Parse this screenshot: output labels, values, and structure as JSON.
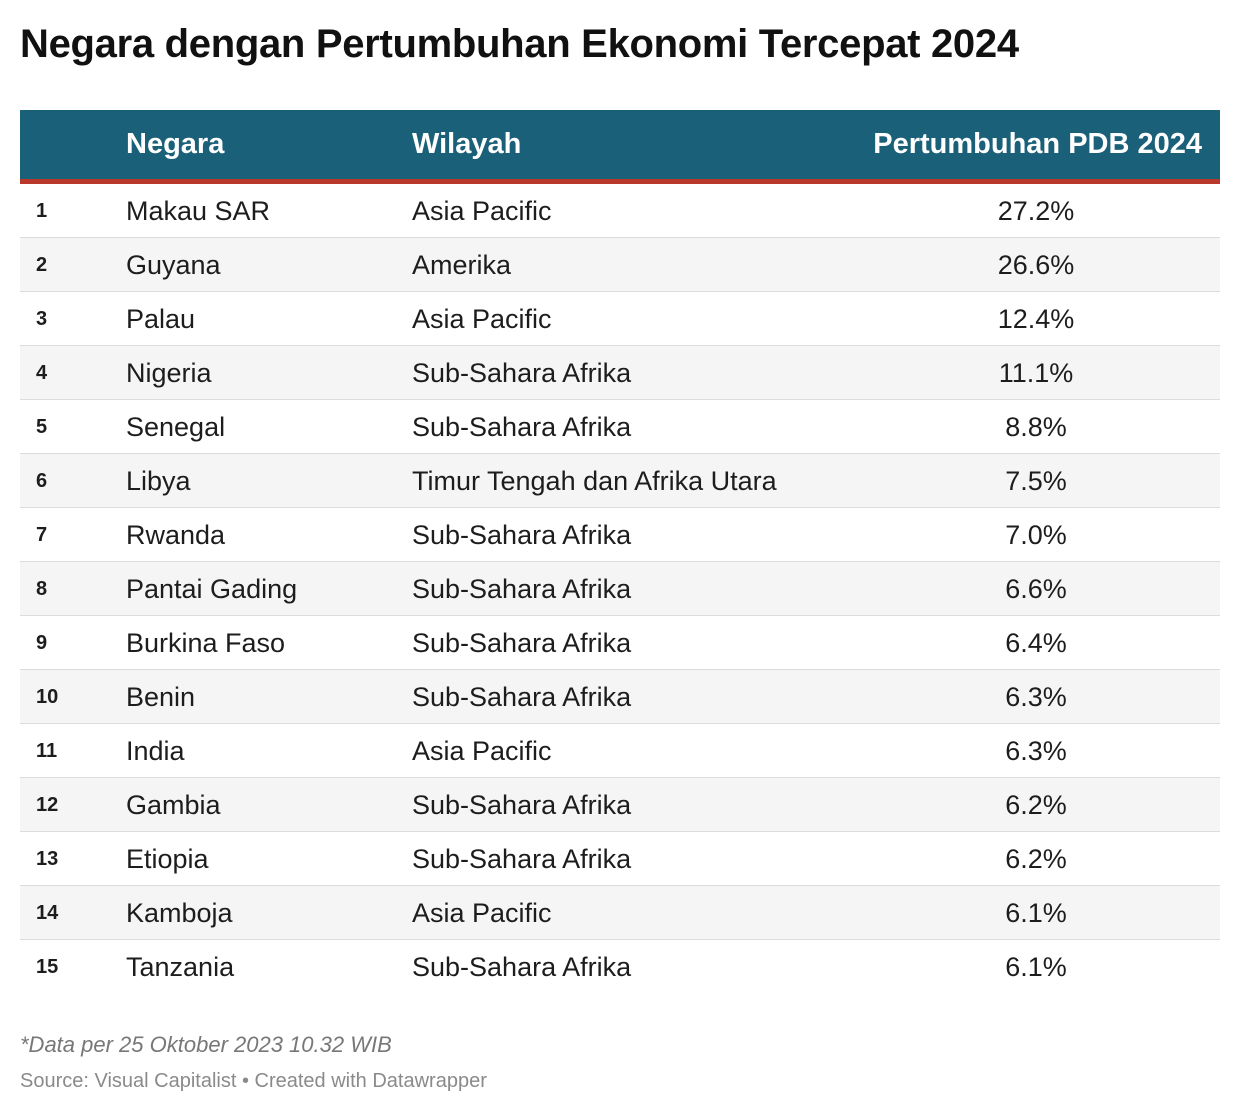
{
  "title": "Negara dengan Pertumbuhan Ekonomi Tercepat 2024",
  "colors": {
    "header_bg": "#1a6079",
    "header_accent": "#b8392c",
    "header_text": "#ffffff",
    "row_alt_bg": "#f5f5f5"
  },
  "chart_data": {
    "type": "table",
    "title": "Negara dengan Pertumbuhan Ekonomi Tercepat 2024",
    "columns": [
      "",
      "Negara",
      "Wilayah",
      "Pertumbuhan PDB 2024"
    ],
    "rows": [
      {
        "rank": "1",
        "negara": "Makau SAR",
        "wilayah": "Asia Pacific",
        "pdb": "27.2%"
      },
      {
        "rank": "2",
        "negara": "Guyana",
        "wilayah": "Amerika",
        "pdb": "26.6%"
      },
      {
        "rank": "3",
        "negara": "Palau",
        "wilayah": "Asia Pacific",
        "pdb": "12.4%"
      },
      {
        "rank": "4",
        "negara": "Nigeria",
        "wilayah": "Sub-Sahara Afrika",
        "pdb": "11.1%"
      },
      {
        "rank": "5",
        "negara": "Senegal",
        "wilayah": "Sub-Sahara Afrika",
        "pdb": "8.8%"
      },
      {
        "rank": "6",
        "negara": "Libya",
        "wilayah": "Timur Tengah dan Afrika Utara",
        "pdb": "7.5%"
      },
      {
        "rank": "7",
        "negara": "Rwanda",
        "wilayah": "Sub-Sahara Afrika",
        "pdb": "7.0%"
      },
      {
        "rank": "8",
        "negara": "Pantai Gading",
        "wilayah": "Sub-Sahara Afrika",
        "pdb": "6.6%"
      },
      {
        "rank": "9",
        "negara": "Burkina Faso",
        "wilayah": "Sub-Sahara Afrika",
        "pdb": "6.4%"
      },
      {
        "rank": "10",
        "negara": "Benin",
        "wilayah": "Sub-Sahara Afrika",
        "pdb": "6.3%"
      },
      {
        "rank": "11",
        "negara": "India",
        "wilayah": "Asia Pacific",
        "pdb": "6.3%"
      },
      {
        "rank": "12",
        "negara": "Gambia",
        "wilayah": "Sub-Sahara Afrika",
        "pdb": "6.2%"
      },
      {
        "rank": "13",
        "negara": "Etiopia",
        "wilayah": "Sub-Sahara Afrika",
        "pdb": "6.2%"
      },
      {
        "rank": "14",
        "negara": "Kamboja",
        "wilayah": "Asia Pacific",
        "pdb": "6.1%"
      },
      {
        "rank": "15",
        "negara": "Tanzania",
        "wilayah": "Sub-Sahara Afrika",
        "pdb": "6.1%"
      }
    ]
  },
  "footer": {
    "note": "*Data per 25 Oktober 2023 10.32 WIB",
    "source": "Source: Visual Capitalist • Created with Datawrapper"
  }
}
